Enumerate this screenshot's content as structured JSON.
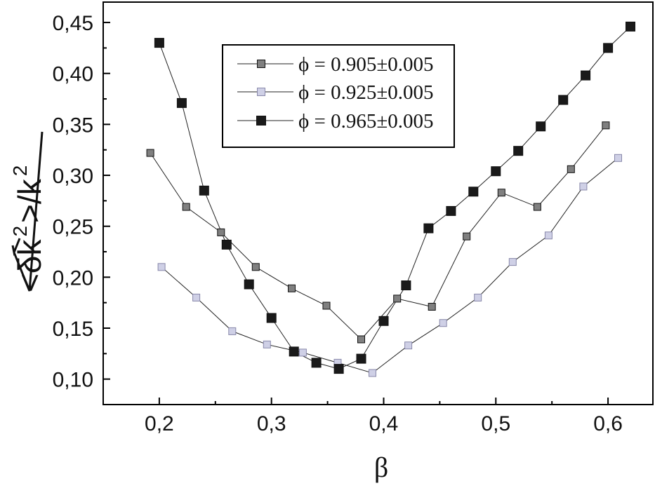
{
  "chart_data": {
    "type": "line",
    "title": "",
    "xlabel": "β",
    "ylabel_parts": [
      "<δk",
      "2",
      ">/k",
      "2"
    ],
    "xlim": [
      0.15,
      0.64
    ],
    "ylim": [
      0.075,
      0.47
    ],
    "x_ticks": [
      0.2,
      0.3,
      0.4,
      0.5,
      0.6
    ],
    "x_tick_labels": [
      "0,2",
      "0,3",
      "0,4",
      "0,5",
      "0,6"
    ],
    "y_ticks": [
      0.1,
      0.15,
      0.2,
      0.25,
      0.3,
      0.35,
      0.4,
      0.45
    ],
    "y_tick_labels": [
      "0,10",
      "0,15",
      "0,20",
      "0,25",
      "0,30",
      "0,35",
      "0,40",
      "0,45"
    ],
    "legend_position": "top-center",
    "series": [
      {
        "name": "ϕ = 0.905±0.005",
        "fill": "#808080",
        "x": [
          0.192,
          0.224,
          0.255,
          0.286,
          0.318,
          0.349,
          0.38,
          0.412,
          0.443,
          0.474,
          0.505,
          0.537,
          0.567,
          0.598
        ],
        "y": [
          0.322,
          0.269,
          0.244,
          0.21,
          0.189,
          0.172,
          0.139,
          0.179,
          0.171,
          0.24,
          0.283,
          0.269,
          0.306,
          0.349
        ]
      },
      {
        "name": "ϕ = 0.925±0.005",
        "fill": "#cfd0e6",
        "x": [
          0.202,
          0.233,
          0.265,
          0.296,
          0.328,
          0.359,
          0.39,
          0.422,
          0.453,
          0.484,
          0.515,
          0.547,
          0.578,
          0.609
        ],
        "y": [
          0.21,
          0.18,
          0.147,
          0.134,
          0.126,
          0.116,
          0.106,
          0.133,
          0.155,
          0.18,
          0.215,
          0.241,
          0.289,
          0.317
        ]
      },
      {
        "name": "ϕ = 0.965±0.005",
        "fill": "#1a1a1a",
        "x": [
          0.2,
          0.22,
          0.24,
          0.26,
          0.28,
          0.3,
          0.32,
          0.34,
          0.36,
          0.38,
          0.4,
          0.42,
          0.44,
          0.46,
          0.48,
          0.5,
          0.52,
          0.54,
          0.56,
          0.58,
          0.6,
          0.62
        ],
        "y": [
          0.43,
          0.371,
          0.285,
          0.232,
          0.193,
          0.16,
          0.127,
          0.116,
          0.11,
          0.12,
          0.157,
          0.192,
          0.248,
          0.265,
          0.284,
          0.304,
          0.324,
          0.348,
          0.374,
          0.398,
          0.425,
          0.446
        ]
      }
    ]
  }
}
